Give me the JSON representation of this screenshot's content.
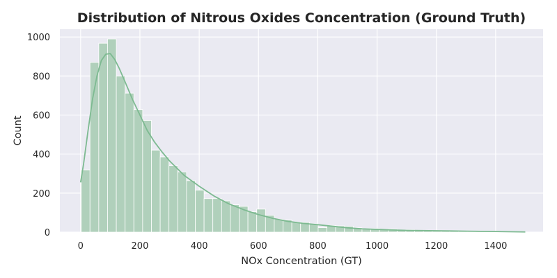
{
  "colors": {
    "plot_background": "#eaeaf2",
    "grid": "#ffffff",
    "bar_fill": "#b0d0bb",
    "bar_edge": "#ffffff",
    "kde_line": "#7dba91",
    "text": "#262626"
  },
  "chart_data": {
    "type": "bar",
    "subtype": "histogram-with-kde",
    "title": "Distribution of Nitrous Oxides Concentration (Ground Truth)",
    "xlabel": "NOx Concentration (GT)",
    "ylabel": "Count",
    "xlim": [
      -70,
      1560
    ],
    "ylim": [
      0,
      1040
    ],
    "grid": true,
    "xticks": [
      0,
      200,
      400,
      600,
      800,
      1000,
      1200,
      1400
    ],
    "yticks": [
      0,
      200,
      400,
      600,
      800,
      1000
    ],
    "bin_width": 29.6,
    "bin_start": 2,
    "counts": [
      318,
      870,
      968,
      990,
      800,
      712,
      628,
      572,
      420,
      385,
      340,
      308,
      264,
      215,
      172,
      172,
      160,
      140,
      132,
      105,
      118,
      86,
      66,
      62,
      52,
      50,
      42,
      23,
      34,
      32,
      30,
      22,
      18,
      18,
      14,
      16,
      10,
      12,
      8,
      8,
      6,
      5,
      5,
      4,
      3,
      4,
      3,
      3,
      2,
      1
    ],
    "kde": {
      "x": [
        0,
        10,
        25,
        40,
        55,
        70,
        85,
        100,
        115,
        130,
        150,
        175,
        200,
        225,
        250,
        275,
        300,
        350,
        400,
        450,
        500,
        550,
        600,
        650,
        700,
        750,
        800,
        850,
        900,
        950,
        1000,
        1050,
        1100,
        1150,
        1200,
        1250,
        1300,
        1400,
        1500
      ],
      "y": [
        255,
        350,
        520,
        680,
        800,
        880,
        912,
        915,
        885,
        840,
        770,
        680,
        600,
        520,
        460,
        410,
        365,
        290,
        235,
        185,
        145,
        115,
        90,
        70,
        55,
        45,
        38,
        30,
        22,
        17,
        14,
        11,
        9,
        8,
        7,
        6,
        5,
        3,
        1
      ]
    }
  }
}
